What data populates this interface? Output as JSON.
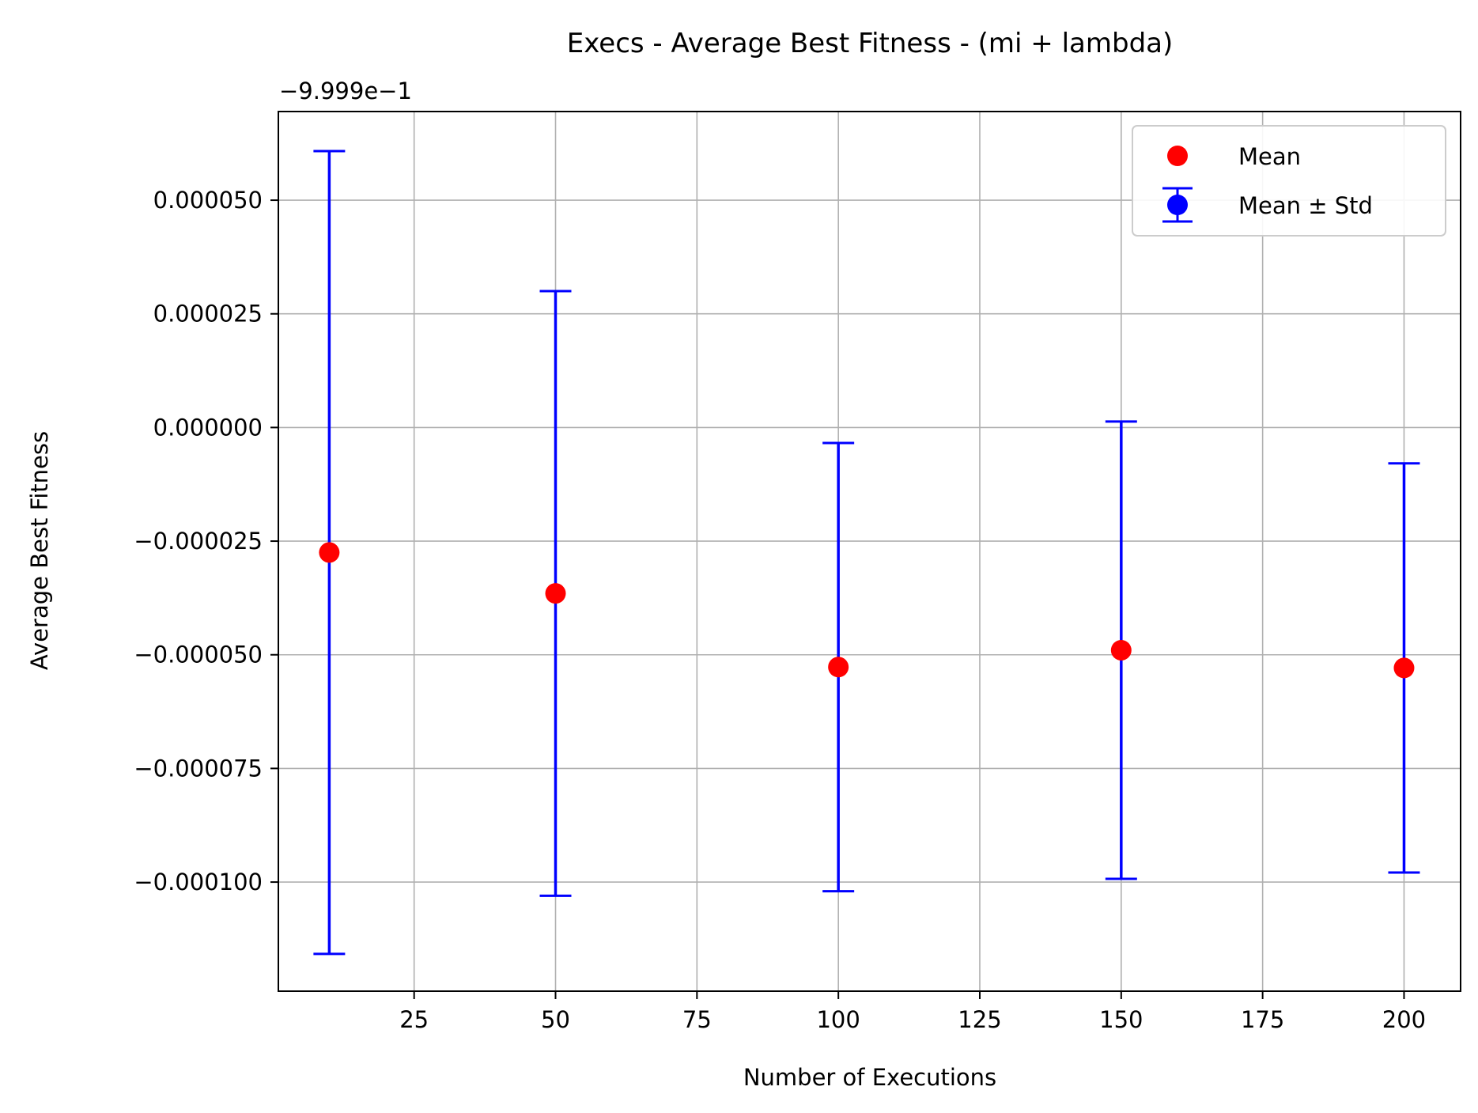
{
  "chart_data": {
    "type": "scatter",
    "title": "Execs - Average Best Fitness - (mi + lambda)",
    "xlabel": "Number of Executions",
    "ylabel": "Average Best Fitness",
    "y_offset_label": "−9.999e−1",
    "x": [
      10,
      50,
      100,
      150,
      200
    ],
    "series": [
      {
        "name": "Mean",
        "color": "#ff0000",
        "values": [
          -2.75e-05,
          -3.65e-05,
          -5.27e-05,
          -4.9e-05,
          -5.29e-05
        ]
      },
      {
        "name": "Mean ± Std",
        "color": "#0000ff",
        "values": [
          -2.75e-05,
          -3.65e-05,
          -5.27e-05,
          -4.9e-05,
          -5.29e-05
        ],
        "error": [
          8.83e-05,
          6.65e-05,
          4.93e-05,
          5.03e-05,
          4.5e-05
        ]
      }
    ],
    "xlim": [
      1,
      210
    ],
    "ylim": [
      -0.000124,
      6.95e-05
    ],
    "xticks": [
      25,
      50,
      75,
      100,
      125,
      150,
      175,
      200
    ],
    "xtick_labels": [
      "25",
      "50",
      "75",
      "100",
      "125",
      "150",
      "175",
      "200"
    ],
    "yticks": [
      5e-05,
      2.5e-05,
      0,
      -2.5e-05,
      -5e-05,
      -7.5e-05,
      -0.0001
    ],
    "ytick_labels": [
      "0.000050",
      "0.000025",
      "0.000000",
      "−0.000025",
      "−0.000050",
      "−0.000075",
      "−0.000100"
    ],
    "grid": true,
    "legend_position": "top-right"
  }
}
